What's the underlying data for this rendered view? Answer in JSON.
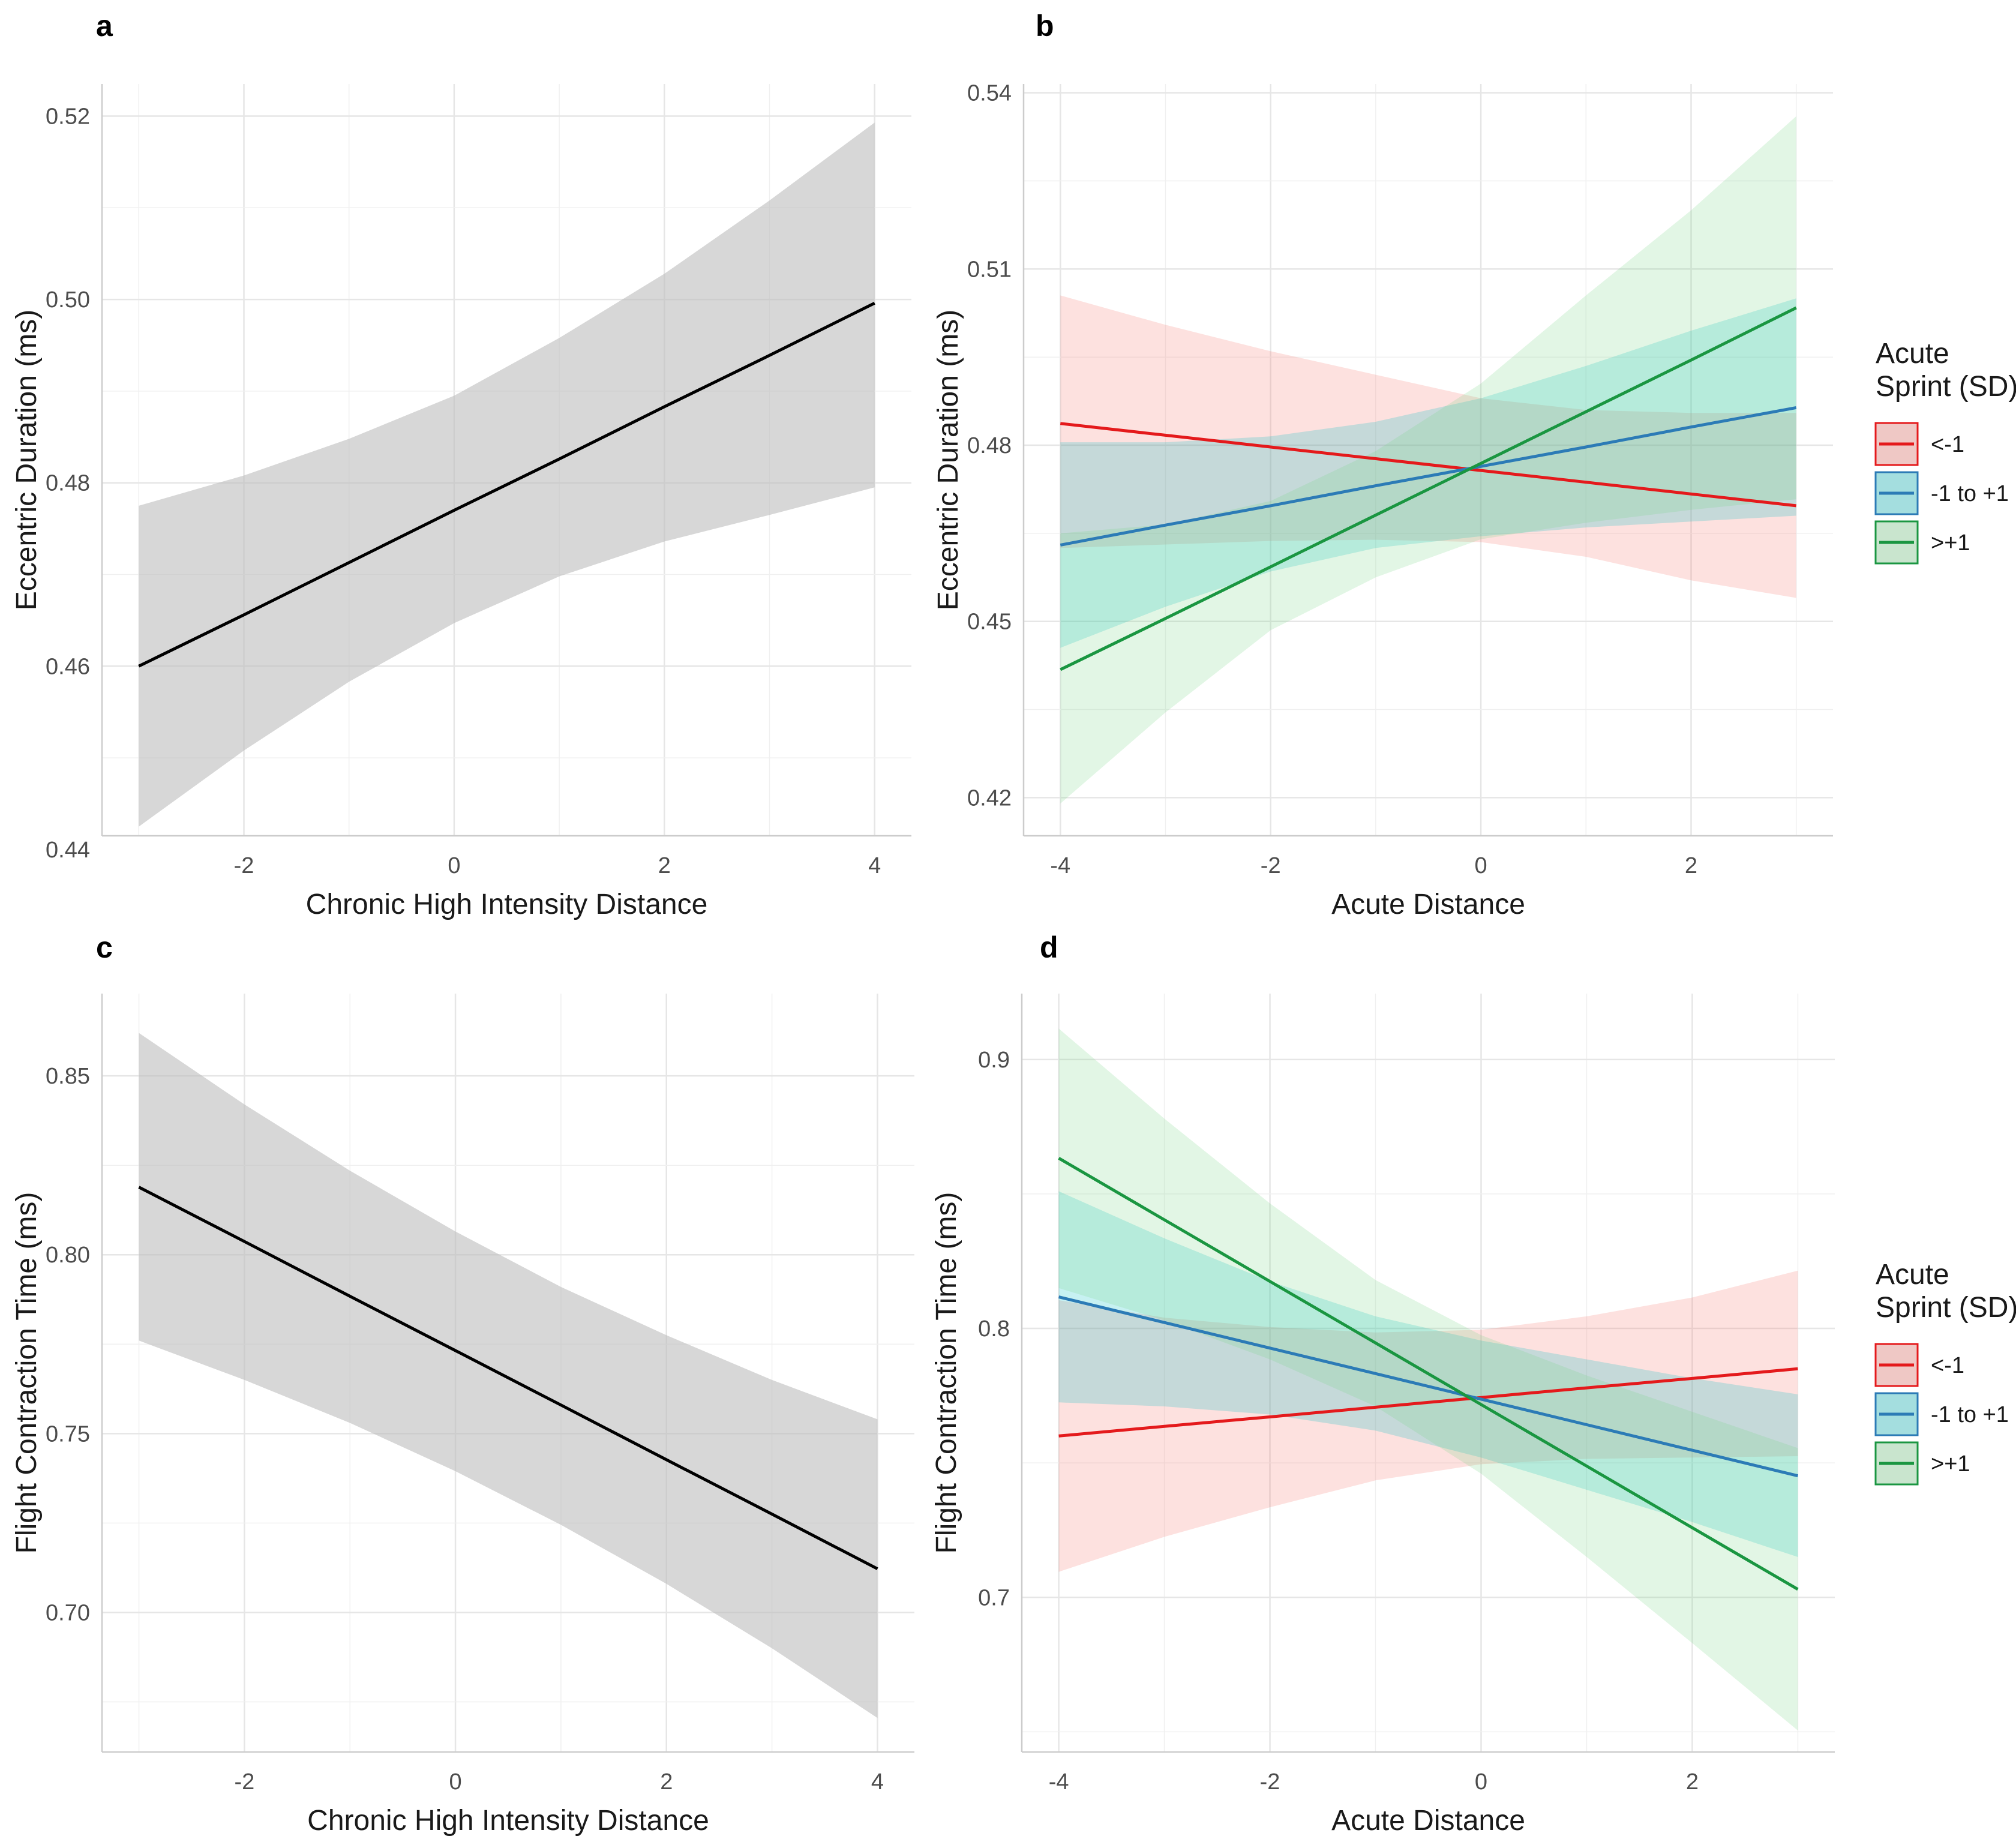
{
  "chart_data": [
    {
      "panel": "a",
      "type": "line",
      "xlabel": "Chronic High Intensity Distance",
      "ylabel": "Eccentric Duration (ms)",
      "xlim": [
        -3.35,
        4.35
      ],
      "ylim": [
        0.4415,
        0.5235
      ],
      "xticks": [
        -2,
        0,
        2,
        4
      ],
      "xtick_labels": [
        "-2",
        "0",
        "2",
        "4"
      ],
      "yticks": [
        0.44,
        0.46,
        0.48,
        0.5,
        0.52
      ],
      "ytick_labels": [
        "0.44",
        "0.46",
        "0.48",
        "0.50",
        "0.52"
      ],
      "series": [
        {
          "name": "fit",
          "color": "#000000",
          "ribbon_color": "#bdbdbd",
          "x": [
            -3,
            -2,
            -1,
            0,
            1,
            2,
            3,
            4
          ],
          "y": [
            0.46,
            0.4656,
            0.4713,
            0.477,
            0.4826,
            0.4883,
            0.4939,
            0.4996
          ],
          "lower": [
            0.4425,
            0.4508,
            0.4583,
            0.4647,
            0.4698,
            0.4736,
            0.4765,
            0.4795
          ],
          "upper": [
            0.4775,
            0.4808,
            0.4848,
            0.4895,
            0.4958,
            0.5028,
            0.5108,
            0.5193
          ]
        }
      ]
    },
    {
      "panel": "b",
      "type": "line",
      "xlabel": "Acute Distance",
      "ylabel": "Eccentric Duration (ms)",
      "xlim": [
        -4.35,
        3.35
      ],
      "ylim": [
        0.4135,
        0.5415
      ],
      "xticks": [
        -4,
        -2,
        0,
        2
      ],
      "xtick_labels": [
        "-4",
        "-2",
        "0",
        "2"
      ],
      "yticks": [
        0.42,
        0.45,
        0.48,
        0.51,
        0.54
      ],
      "ytick_labels": [
        "0.42",
        "0.45",
        "0.48",
        "0.51",
        "0.54"
      ],
      "legend": {
        "title_lines": [
          "Acute",
          "Sprint (SD)"
        ],
        "position": "right"
      },
      "series": [
        {
          "name": "<-1",
          "color": "#e41a1c",
          "x": [
            -4,
            -3,
            -2,
            -1,
            0,
            1,
            2,
            3
          ],
          "y": [
            0.4837,
            0.4817,
            0.4797,
            0.4777,
            0.4757,
            0.4737,
            0.4717,
            0.4697
          ],
          "lower": [
            0.4625,
            0.4631,
            0.4637,
            0.4639,
            0.4635,
            0.461,
            0.457,
            0.454
          ],
          "upper": [
            0.5055,
            0.5005,
            0.496,
            0.492,
            0.488,
            0.486,
            0.4855,
            0.4855
          ]
        },
        {
          "name": "-1 to +1",
          "color": "#2c7bb6",
          "x": [
            -4,
            -3,
            -2,
            -1,
            0,
            1,
            2,
            3
          ],
          "y": [
            0.463,
            0.4664,
            0.4697,
            0.4731,
            0.4764,
            0.4797,
            0.4831,
            0.4864
          ],
          "lower": [
            0.4455,
            0.4525,
            0.4585,
            0.4625,
            0.4645,
            0.466,
            0.467,
            0.468
          ],
          "upper": [
            0.4805,
            0.4805,
            0.4815,
            0.484,
            0.488,
            0.4935,
            0.4995,
            0.505
          ]
        },
        {
          "name": ">+1",
          "color": "#1a9641",
          "x": [
            -4,
            -3,
            -2,
            -1,
            0,
            1,
            2,
            3
          ],
          "y": [
            0.4418,
            0.4505,
            0.4593,
            0.4681,
            0.4769,
            0.4857,
            0.4945,
            0.5034
          ],
          "lower": [
            0.419,
            0.4345,
            0.4485,
            0.4575,
            0.464,
            0.4668,
            0.469,
            0.4708
          ],
          "upper": [
            0.465,
            0.4665,
            0.4705,
            0.479,
            0.4905,
            0.5055,
            0.52,
            0.536
          ]
        }
      ]
    },
    {
      "panel": "c",
      "type": "line",
      "xlabel": "Chronic High Intensity Distance",
      "ylabel": "Flight Contraction Time (ms)",
      "xlim": [
        -3.35,
        4.35
      ],
      "ylim": [
        0.661,
        0.873
      ],
      "xticks": [
        -2,
        0,
        2,
        4
      ],
      "xtick_labels": [
        "-2",
        "0",
        "2",
        "4"
      ],
      "yticks": [
        0.7,
        0.75,
        0.8,
        0.85
      ],
      "ytick_labels": [
        "0.70",
        "0.75",
        "0.80",
        "0.85"
      ],
      "series": [
        {
          "name": "fit",
          "color": "#000000",
          "ribbon_color": "#bdbdbd",
          "x": [
            -3,
            -2,
            -1,
            0,
            1,
            2,
            3,
            4
          ],
          "y": [
            0.8189,
            0.8037,
            0.7884,
            0.7732,
            0.758,
            0.7427,
            0.7275,
            0.7122
          ],
          "lower": [
            0.776,
            0.765,
            0.753,
            0.7395,
            0.7245,
            0.708,
            0.69,
            0.6705
          ],
          "upper": [
            0.862,
            0.842,
            0.8235,
            0.8065,
            0.791,
            0.7775,
            0.765,
            0.754
          ]
        }
      ]
    },
    {
      "panel": "d",
      "type": "line",
      "xlabel": "Acute Distance",
      "ylabel": "Flight Contraction Time (ms)",
      "xlim": [
        -4.35,
        3.35
      ],
      "ylim": [
        0.6425,
        0.9245
      ],
      "xticks": [
        -4,
        -2,
        0,
        2
      ],
      "xtick_labels": [
        "-4",
        "-2",
        "0",
        "2"
      ],
      "yticks": [
        0.7,
        0.8,
        0.9
      ],
      "ytick_labels": [
        "0.7",
        "0.8",
        "0.9"
      ],
      "legend": {
        "title_lines": [
          "Acute",
          "Sprint (SD)"
        ],
        "position": "right"
      },
      "series": [
        {
          "name": "<-1",
          "color": "#e41a1c",
          "x": [
            -4,
            -3,
            -2,
            -1,
            0,
            1,
            2,
            3
          ],
          "y": [
            0.76,
            0.7636,
            0.7671,
            0.7707,
            0.7743,
            0.7779,
            0.7814,
            0.785
          ],
          "lower": [
            0.7095,
            0.7225,
            0.7335,
            0.7435,
            0.7495,
            0.7515,
            0.752,
            0.7525
          ],
          "upper": [
            0.8105,
            0.804,
            0.8005,
            0.7985,
            0.7995,
            0.8045,
            0.8115,
            0.8215
          ]
        },
        {
          "name": "-1 to +1",
          "color": "#2c7bb6",
          "x": [
            -4,
            -3,
            -2,
            -1,
            0,
            1,
            2,
            3
          ],
          "y": [
            0.8117,
            0.8022,
            0.7927,
            0.7832,
            0.7737,
            0.7642,
            0.7547,
            0.7452
          ],
          "lower": [
            0.7725,
            0.771,
            0.768,
            0.762,
            0.752,
            0.74,
            0.728,
            0.715
          ],
          "upper": [
            0.851,
            0.8335,
            0.8175,
            0.8045,
            0.7955,
            0.7885,
            0.7815,
            0.7755
          ]
        },
        {
          "name": ">+1",
          "color": "#1a9641",
          "x": [
            -4,
            -3,
            -2,
            -1,
            0,
            1,
            2,
            3
          ],
          "y": [
            0.8633,
            0.8404,
            0.8175,
            0.7946,
            0.7717,
            0.7488,
            0.7259,
            0.703
          ],
          "lower": [
            0.815,
            0.803,
            0.7885,
            0.771,
            0.746,
            0.715,
            0.683,
            0.6505
          ],
          "upper": [
            0.9115,
            0.878,
            0.8465,
            0.818,
            0.7975,
            0.7825,
            0.769,
            0.7555
          ]
        }
      ]
    }
  ]
}
